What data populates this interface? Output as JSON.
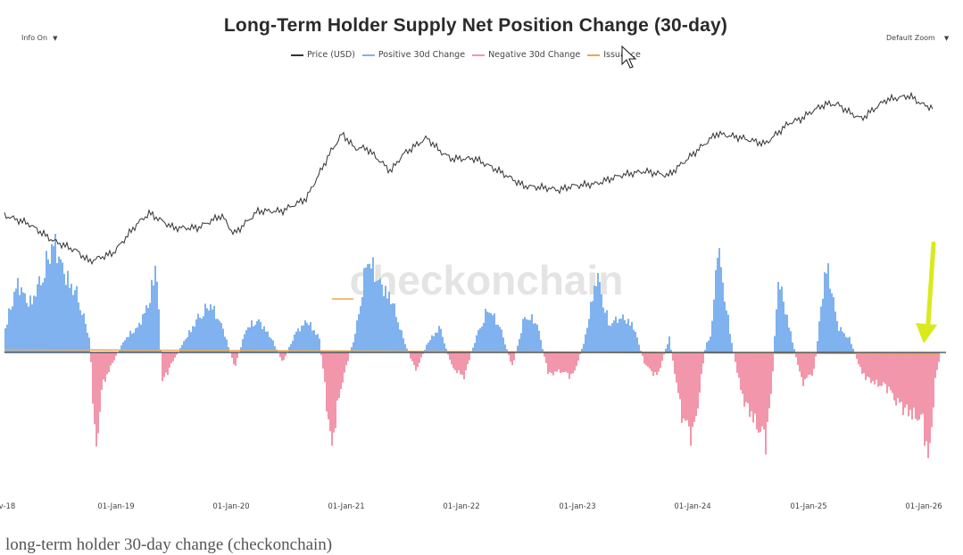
{
  "title": "Long-Term Holder Supply Net Position Change (30-day)",
  "controls": {
    "info_label": "Info On",
    "zoom_label": "Default Zoom",
    "caret": "▼"
  },
  "watermark": "checkonchain",
  "caption": "long-term holder 30-day change (checkonchain)",
  "colors": {
    "price": "#333333",
    "positive": "#7fb2ee",
    "negative": "#f296ab",
    "issuance": "#e8a850",
    "baseline": "#334455",
    "arrow": "#d9ea1c"
  },
  "chart_data": {
    "type": "area",
    "title": "Long-Term Holder Supply Net Position Change (30-day)",
    "legend": [
      "Price (USD)",
      "Positive 30d Change",
      "Negative 30d Change",
      "Issuance"
    ],
    "legend_position": "top-center",
    "x_tick_labels": [
      "v-18",
      "01-Jan-19",
      "01-Jan-20",
      "01-Jan-21",
      "01-Jan-22",
      "01-Jan-23",
      "01-Jan-24",
      "01-Jan-25",
      "01-Jan-26"
    ],
    "x_range": [
      2018.3,
      2026.1
    ],
    "y_axis_labels_shown": false,
    "net_change_relative": {
      "x": [
        2018.3,
        2018.4,
        2018.5,
        2018.6,
        2018.7,
        2018.8,
        2018.9,
        2019.0,
        2019.05,
        2019.1,
        2019.2,
        2019.3,
        2019.4,
        2019.5,
        2019.55,
        2019.6,
        2019.7,
        2019.8,
        2019.9,
        2020.0,
        2020.1,
        2020.2,
        2020.3,
        2020.4,
        2020.5,
        2020.6,
        2020.7,
        2020.8,
        2020.9,
        2020.95,
        2021.0,
        2021.05,
        2021.1,
        2021.2,
        2021.3,
        2021.4,
        2021.5,
        2021.6,
        2021.7,
        2021.8,
        2021.9,
        2022.0,
        2022.1,
        2022.2,
        2022.3,
        2022.4,
        2022.5,
        2022.6,
        2022.7,
        2022.8,
        2022.9,
        2023.0,
        2023.1,
        2023.2,
        2023.3,
        2023.4,
        2023.5,
        2023.6,
        2023.7,
        2023.8,
        2023.9,
        2024.0,
        2024.1,
        2024.15,
        2024.2,
        2024.3,
        2024.4,
        2024.5,
        2024.6,
        2024.65,
        2024.7,
        2024.8,
        2024.9,
        2025.0,
        2025.1,
        2025.2,
        2025.3,
        2025.4,
        2025.5,
        2025.6,
        2025.7,
        2025.8,
        2025.9,
        2025.95,
        2026.0,
        2026.05
      ],
      "y": [
        0.2,
        0.55,
        0.38,
        0.58,
        0.88,
        0.6,
        0.45,
        0.1,
        -0.85,
        -0.28,
        -0.06,
        0.12,
        0.2,
        0.42,
        0.75,
        -0.25,
        -0.05,
        0.12,
        0.28,
        0.38,
        0.2,
        -0.12,
        0.2,
        0.25,
        0.12,
        -0.08,
        0.15,
        0.25,
        0.12,
        -0.3,
        -0.8,
        -0.45,
        -0.2,
        0.15,
        0.75,
        0.55,
        0.42,
        0.1,
        -0.15,
        0.08,
        0.2,
        -0.12,
        -0.2,
        0.12,
        0.35,
        0.2,
        -0.12,
        0.28,
        0.25,
        -0.18,
        -0.15,
        -0.2,
        0.1,
        0.62,
        0.22,
        0.28,
        0.22,
        -0.1,
        -0.2,
        0.12,
        -0.5,
        -0.7,
        0.05,
        0.15,
        0.85,
        0.18,
        -0.35,
        -0.55,
        -0.72,
        -0.3,
        0.6,
        0.18,
        -0.25,
        -0.15,
        0.72,
        0.2,
        0.1,
        -0.18,
        -0.25,
        -0.28,
        -0.42,
        -0.5,
        -0.55,
        -0.92,
        -0.25,
        0.0
      ]
    },
    "price_relative": {
      "x": [
        2018.3,
        2018.5,
        2018.7,
        2018.9,
        2019.0,
        2019.2,
        2019.4,
        2019.5,
        2019.7,
        2019.9,
        2020.1,
        2020.2,
        2020.4,
        2020.6,
        2020.8,
        2021.0,
        2021.1,
        2021.2,
        2021.3,
        2021.5,
        2021.6,
        2021.8,
        2021.9,
        2022.0,
        2022.2,
        2022.4,
        2022.6,
        2022.8,
        2022.9,
        2023.0,
        2023.2,
        2023.4,
        2023.6,
        2023.8,
        2024.0,
        2024.2,
        2024.4,
        2024.6,
        2024.8,
        2024.9,
        2025.0,
        2025.1,
        2025.2,
        2025.3,
        2025.4,
        2025.6,
        2025.8,
        2025.9,
        2026.0
      ],
      "y": [
        0.42,
        0.38,
        0.3,
        0.25,
        0.2,
        0.24,
        0.38,
        0.43,
        0.36,
        0.36,
        0.42,
        0.33,
        0.44,
        0.44,
        0.5,
        0.72,
        0.81,
        0.74,
        0.74,
        0.63,
        0.71,
        0.79,
        0.73,
        0.69,
        0.69,
        0.63,
        0.56,
        0.55,
        0.54,
        0.56,
        0.57,
        0.61,
        0.63,
        0.61,
        0.71,
        0.81,
        0.79,
        0.76,
        0.86,
        0.88,
        0.92,
        0.95,
        0.95,
        0.91,
        0.88,
        0.97,
        0.99,
        0.95,
        0.93
      ]
    },
    "issuance_relative": 0.04,
    "annotation": "arrow pointing to latest negative change near 01-Jan-26"
  }
}
